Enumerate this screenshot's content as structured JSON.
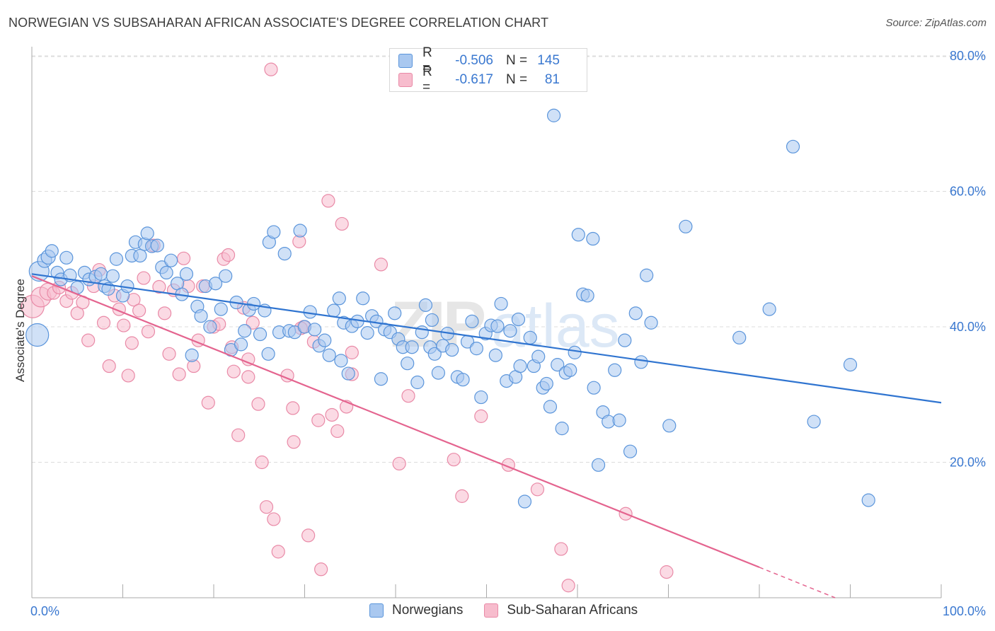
{
  "header": {
    "title": "NORWEGIAN VS SUBSAHARAN AFRICAN ASSOCIATE'S DEGREE CORRELATION CHART",
    "source": "Source: ZipAtlas.com"
  },
  "legend": {
    "rows": [
      {
        "r_label": "R =",
        "r_value": "-0.506",
        "n_label": "N =",
        "n_value": "145"
      },
      {
        "r_label": "R =",
        "r_value": "-0.617",
        "n_label": "N =",
        "n_value": "81"
      }
    ]
  },
  "bottom_legend": {
    "items": [
      {
        "label": "Norwegians"
      },
      {
        "label": "Sub-Saharan Africans"
      }
    ]
  },
  "watermark": {
    "zip": "ZIP",
    "atlas": "atlas"
  },
  "colors": {
    "blue_fill": "#a9c8f0",
    "blue_stroke": "#5b95db",
    "blue_line": "#2f74d0",
    "pink_fill": "#f7bccd",
    "pink_stroke": "#e98aa7",
    "pink_line": "#e4648f",
    "tick_text": "#3a78d0",
    "grid": "#dcdcdc"
  },
  "chart_data": {
    "type": "scatter",
    "title": "NORWEGIAN VS SUBSAHARAN AFRICAN ASSOCIATE'S DEGREE CORRELATION CHART",
    "xlabel": "",
    "ylabel": "Associate's Degree",
    "xlim": [
      0,
      100
    ],
    "ylim": [
      0,
      80
    ],
    "x_tick_labels": [
      "0.0%",
      "100.0%"
    ],
    "y_ticks": [
      20,
      40,
      60,
      80
    ],
    "y_tick_labels": [
      "20.0%",
      "40.0%",
      "60.0%",
      "80.0%"
    ],
    "x_minor_ticks": [
      10,
      20,
      30,
      40,
      50,
      60,
      70,
      80,
      90,
      100
    ],
    "series": [
      {
        "name": "Norwegians",
        "r": -0.506,
        "n": 145,
        "trend": {
          "x": [
            0,
            100
          ],
          "y": [
            47.8,
            28.8
          ]
        },
        "points": [
          [
            0.6,
            38.8,
            16
          ],
          [
            0.8,
            48.2,
            14
          ],
          [
            1.4,
            49.8,
            10
          ],
          [
            1.8,
            50.3,
            10
          ],
          [
            2.2,
            51.2,
            9
          ],
          [
            2.8,
            48.0,
            9
          ],
          [
            3.2,
            47.0,
            9
          ],
          [
            3.8,
            50.2,
            9
          ],
          [
            4.2,
            47.6,
            9
          ],
          [
            5.0,
            45.8,
            9
          ],
          [
            5.8,
            48.0,
            9
          ],
          [
            6.3,
            47.0,
            9
          ],
          [
            7.0,
            47.4,
            9
          ],
          [
            7.6,
            47.8,
            9
          ],
          [
            8.0,
            46.0,
            9
          ],
          [
            8.4,
            45.6,
            9
          ],
          [
            8.9,
            47.5,
            9
          ],
          [
            9.3,
            50.0,
            9
          ],
          [
            10.0,
            44.6,
            9
          ],
          [
            10.5,
            46.0,
            9
          ],
          [
            11.0,
            50.5,
            9
          ],
          [
            11.4,
            52.5,
            9
          ],
          [
            11.9,
            50.5,
            9
          ],
          [
            12.4,
            52.2,
            9
          ],
          [
            12.7,
            53.8,
            9
          ],
          [
            13.2,
            51.9,
            9
          ],
          [
            13.8,
            52.0,
            9
          ],
          [
            14.3,
            48.8,
            9
          ],
          [
            14.8,
            48.0,
            9
          ],
          [
            15.3,
            49.8,
            9
          ],
          [
            16.0,
            46.4,
            9
          ],
          [
            16.5,
            44.8,
            9
          ],
          [
            17.0,
            47.8,
            9
          ],
          [
            17.6,
            35.8,
            9
          ],
          [
            18.2,
            43.0,
            9
          ],
          [
            18.6,
            41.6,
            9
          ],
          [
            19.1,
            46.0,
            9
          ],
          [
            19.6,
            40.0,
            9
          ],
          [
            20.2,
            46.4,
            9
          ],
          [
            20.8,
            42.6,
            9
          ],
          [
            21.3,
            47.5,
            9
          ],
          [
            21.9,
            36.6,
            9
          ],
          [
            22.5,
            43.6,
            9
          ],
          [
            23.0,
            37.4,
            9
          ],
          [
            23.4,
            39.4,
            9
          ],
          [
            23.9,
            42.5,
            9
          ],
          [
            24.4,
            43.4,
            9
          ],
          [
            25.1,
            38.9,
            9
          ],
          [
            25.6,
            42.4,
            9
          ],
          [
            26.1,
            52.5,
            9
          ],
          [
            26.6,
            54.0,
            9
          ],
          [
            27.2,
            39.2,
            9
          ],
          [
            27.8,
            50.8,
            9
          ],
          [
            28.3,
            39.4,
            9
          ],
          [
            28.9,
            39.2,
            9
          ],
          [
            29.5,
            54.2,
            9
          ],
          [
            30.0,
            40.0,
            9
          ],
          [
            30.6,
            42.2,
            9
          ],
          [
            31.1,
            39.6,
            9
          ],
          [
            31.6,
            37.2,
            9
          ],
          [
            32.2,
            38.0,
            9
          ],
          [
            32.7,
            35.8,
            9
          ],
          [
            33.2,
            42.4,
            9
          ],
          [
            33.8,
            44.2,
            9
          ],
          [
            34.3,
            40.6,
            9
          ],
          [
            34.8,
            33.1,
            9
          ],
          [
            35.2,
            40.1,
            9
          ],
          [
            35.8,
            40.8,
            9
          ],
          [
            36.4,
            44.2,
            9
          ],
          [
            36.9,
            39.1,
            9
          ],
          [
            37.4,
            41.6,
            9
          ],
          [
            37.9,
            40.8,
            9
          ],
          [
            38.4,
            32.3,
            9
          ],
          [
            38.8,
            39.6,
            9
          ],
          [
            39.4,
            39.2,
            9
          ],
          [
            39.9,
            42.0,
            9
          ],
          [
            40.3,
            38.2,
            9
          ],
          [
            40.8,
            37.0,
            9
          ],
          [
            41.3,
            34.6,
            9
          ],
          [
            41.8,
            37.0,
            9
          ],
          [
            42.4,
            31.8,
            9
          ],
          [
            42.9,
            39.2,
            9
          ],
          [
            43.3,
            43.2,
            9
          ],
          [
            43.8,
            37.0,
            9
          ],
          [
            44.3,
            36.0,
            9
          ],
          [
            44.7,
            33.2,
            9
          ],
          [
            45.2,
            37.2,
            9
          ],
          [
            45.7,
            39.0,
            9
          ],
          [
            46.2,
            36.6,
            9
          ],
          [
            46.8,
            32.6,
            9
          ],
          [
            47.4,
            32.2,
            9
          ],
          [
            47.9,
            37.8,
            9
          ],
          [
            48.4,
            40.8,
            9
          ],
          [
            48.9,
            36.8,
            9
          ],
          [
            49.4,
            29.6,
            9
          ],
          [
            49.9,
            39.0,
            9
          ],
          [
            50.5,
            40.2,
            9
          ],
          [
            51.0,
            35.8,
            9
          ],
          [
            51.6,
            43.4,
            9
          ],
          [
            52.2,
            32.0,
            9
          ],
          [
            52.6,
            39.4,
            9
          ],
          [
            53.2,
            32.6,
            9
          ],
          [
            53.7,
            34.2,
            9
          ],
          [
            54.2,
            14.2,
            9
          ],
          [
            54.8,
            38.4,
            9
          ],
          [
            55.2,
            34.2,
            9
          ],
          [
            55.7,
            35.6,
            9
          ],
          [
            56.2,
            31.0,
            9
          ],
          [
            56.6,
            31.6,
            9
          ],
          [
            57.0,
            28.2,
            9
          ],
          [
            57.4,
            71.2,
            9
          ],
          [
            57.8,
            34.4,
            9
          ],
          [
            58.3,
            25.0,
            9
          ],
          [
            58.7,
            33.2,
            9
          ],
          [
            59.2,
            33.6,
            9
          ],
          [
            59.7,
            36.2,
            9
          ],
          [
            60.1,
            53.6,
            9
          ],
          [
            60.6,
            44.8,
            9
          ],
          [
            61.1,
            44.6,
            9
          ],
          [
            61.7,
            53.0,
            9
          ],
          [
            62.3,
            19.6,
            9
          ],
          [
            62.8,
            27.4,
            9
          ],
          [
            63.4,
            26.0,
            9
          ],
          [
            64.1,
            33.6,
            9
          ],
          [
            64.6,
            26.2,
            9
          ],
          [
            65.2,
            38.0,
            9
          ],
          [
            65.8,
            21.6,
            9
          ],
          [
            66.4,
            42.0,
            9
          ],
          [
            67.0,
            34.8,
            9
          ],
          [
            67.6,
            47.6,
            9
          ],
          [
            68.1,
            40.6,
            9
          ],
          [
            70.1,
            25.4,
            9
          ],
          [
            71.9,
            54.8,
            9
          ],
          [
            77.8,
            38.4,
            9
          ],
          [
            81.1,
            42.6,
            9
          ],
          [
            83.7,
            66.6,
            9
          ],
          [
            86.0,
            26.0,
            9
          ],
          [
            90.0,
            34.4,
            9
          ],
          [
            92.0,
            14.4,
            9
          ],
          [
            34.0,
            35.0,
            9
          ],
          [
            26.0,
            36.0,
            9
          ],
          [
            44.0,
            41.0,
            9
          ],
          [
            51.2,
            40.1,
            9
          ],
          [
            61.8,
            31.0,
            9
          ],
          [
            53.5,
            41.1,
            9
          ]
        ]
      },
      {
        "name": "Sub-Saharan Africans",
        "r": -0.617,
        "n": 81,
        "trend": {
          "x": [
            0,
            80,
            100
          ],
          "y": [
            47.5,
            4.5,
            -6.3
          ],
          "solid_until_x": 80
        },
        "points": [
          [
            0.1,
            43.0,
            16
          ],
          [
            1.0,
            44.4,
            14
          ],
          [
            1.8,
            45.2,
            12
          ],
          [
            2.4,
            45.0,
            9
          ],
          [
            3.0,
            45.8,
            9
          ],
          [
            3.8,
            43.8,
            9
          ],
          [
            4.4,
            45.0,
            9
          ],
          [
            5.0,
            42.0,
            9
          ],
          [
            5.6,
            43.6,
            9
          ],
          [
            6.2,
            38.0,
            9
          ],
          [
            6.8,
            46.0,
            9
          ],
          [
            7.4,
            48.4,
            9
          ],
          [
            7.9,
            40.6,
            9
          ],
          [
            8.5,
            34.2,
            9
          ],
          [
            9.1,
            44.6,
            9
          ],
          [
            9.6,
            42.6,
            9
          ],
          [
            10.1,
            40.2,
            9
          ],
          [
            10.6,
            32.8,
            9
          ],
          [
            11.2,
            44.0,
            9
          ],
          [
            11.8,
            42.4,
            9
          ],
          [
            12.3,
            47.2,
            9
          ],
          [
            12.8,
            39.3,
            9
          ],
          [
            13.4,
            52.0,
            9
          ],
          [
            14.0,
            45.9,
            9
          ],
          [
            14.6,
            42.0,
            9
          ],
          [
            15.1,
            36.0,
            9
          ],
          [
            15.6,
            45.4,
            9
          ],
          [
            16.2,
            33.0,
            9
          ],
          [
            16.7,
            50.1,
            9
          ],
          [
            17.2,
            46.0,
            9
          ],
          [
            17.8,
            34.2,
            9
          ],
          [
            18.3,
            38.0,
            9
          ],
          [
            18.8,
            46.0,
            9
          ],
          [
            19.4,
            28.8,
            9
          ],
          [
            20.0,
            40.0,
            9
          ],
          [
            20.6,
            40.4,
            9
          ],
          [
            21.1,
            50.0,
            9
          ],
          [
            21.6,
            50.6,
            9
          ],
          [
            22.2,
            33.4,
            9
          ],
          [
            22.7,
            24.0,
            9
          ],
          [
            23.3,
            42.8,
            9
          ],
          [
            23.8,
            35.2,
            9
          ],
          [
            24.3,
            40.6,
            9
          ],
          [
            24.9,
            28.6,
            9
          ],
          [
            25.3,
            20.0,
            9
          ],
          [
            25.8,
            13.4,
            9
          ],
          [
            26.3,
            78.0,
            9
          ],
          [
            26.6,
            11.6,
            9
          ],
          [
            27.1,
            6.8,
            9
          ],
          [
            28.1,
            32.8,
            9
          ],
          [
            28.7,
            28.0,
            9
          ],
          [
            28.8,
            23.0,
            9
          ],
          [
            29.4,
            52.6,
            9
          ],
          [
            29.9,
            40.0,
            9
          ],
          [
            30.4,
            9.2,
            9
          ],
          [
            31.0,
            37.8,
            9
          ],
          [
            31.5,
            26.2,
            9
          ],
          [
            31.8,
            4.2,
            9
          ],
          [
            32.6,
            58.6,
            9
          ],
          [
            33.0,
            27.0,
            9
          ],
          [
            33.6,
            24.6,
            9
          ],
          [
            34.1,
            55.2,
            9
          ],
          [
            34.6,
            28.2,
            9
          ],
          [
            35.2,
            33.0,
            9
          ],
          [
            38.4,
            49.2,
            9
          ],
          [
            40.4,
            19.8,
            9
          ],
          [
            41.4,
            29.8,
            9
          ],
          [
            46.4,
            20.4,
            9
          ],
          [
            47.3,
            15.0,
            9
          ],
          [
            49.4,
            26.8,
            9
          ],
          [
            52.4,
            19.6,
            9
          ],
          [
            55.6,
            16.0,
            9
          ],
          [
            58.2,
            7.2,
            9
          ],
          [
            59.0,
            1.8,
            9
          ],
          [
            65.3,
            12.4,
            9
          ],
          [
            69.8,
            3.8,
            9
          ],
          [
            23.8,
            32.6,
            9
          ],
          [
            29.6,
            39.8,
            9
          ],
          [
            22.0,
            37.0,
            9
          ],
          [
            35.2,
            36.2,
            9
          ],
          [
            11.0,
            37.6,
            9
          ]
        ]
      }
    ]
  }
}
